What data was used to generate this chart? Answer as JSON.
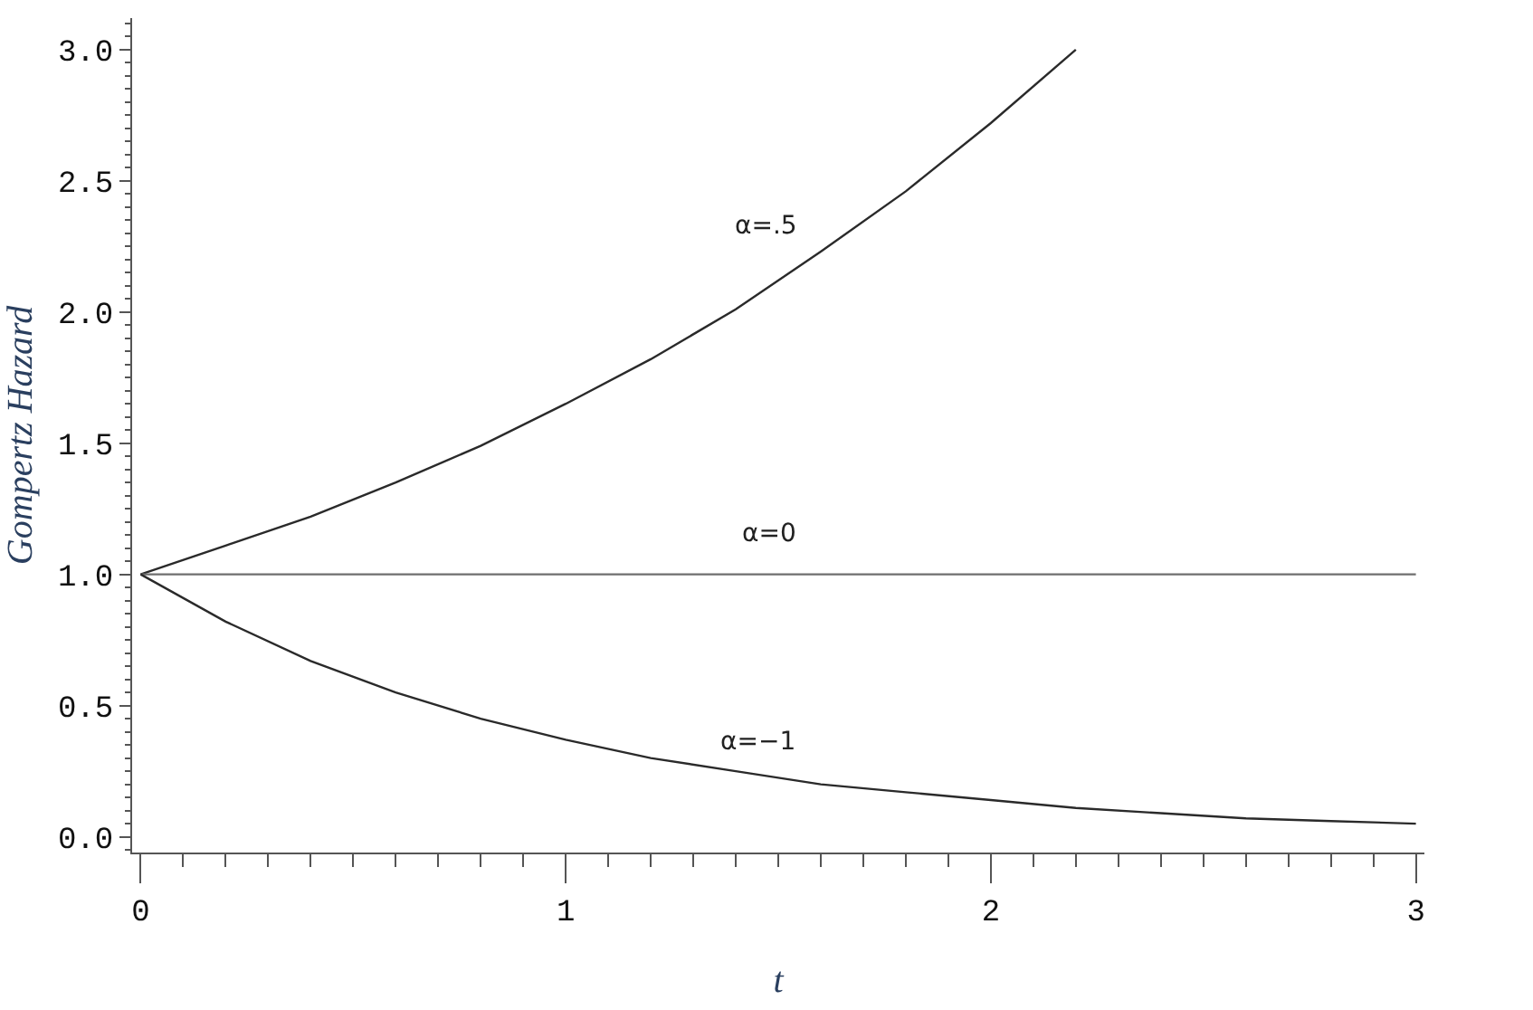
{
  "chart_data": {
    "type": "line",
    "xlabel": "t",
    "ylabel": "Gompertz Hazard",
    "xlim": [
      -0.02,
      3.02
    ],
    "ylim": [
      -0.06,
      3.12
    ],
    "xticks": [
      0,
      1,
      2,
      3
    ],
    "yticks": [
      {
        "value": 0,
        "label": "0.0"
      },
      {
        "value": 0.5,
        "label": "0.5"
      },
      {
        "value": 1,
        "label": "1.0"
      },
      {
        "value": 1.5,
        "label": "1.5"
      },
      {
        "value": 2,
        "label": "2.0"
      },
      {
        "value": 2.5,
        "label": "2.5"
      },
      {
        "value": 3,
        "label": "3.0"
      }
    ],
    "legend": false,
    "marker": "none",
    "line_style": "solid",
    "series": [
      {
        "name": "α=.5",
        "color": "#2a2a2a",
        "x": [
          0,
          0.2,
          0.4,
          0.6,
          0.8,
          1.0,
          1.2,
          1.4,
          1.6,
          1.8,
          2.0,
          2.2
        ],
        "values": [
          1.0,
          1.11,
          1.22,
          1.35,
          1.49,
          1.65,
          1.82,
          2.01,
          2.23,
          2.46,
          2.72,
          3.0
        ]
      },
      {
        "name": "α=0",
        "color": "#6e6e6e",
        "x": [
          0,
          3
        ],
        "values": [
          1.0,
          1.0
        ]
      },
      {
        "name": "α=−1",
        "color": "#2a2a2a",
        "x": [
          0,
          0.2,
          0.4,
          0.6,
          0.8,
          1.0,
          1.2,
          1.4,
          1.6,
          1.8,
          2.0,
          2.2,
          2.4,
          2.6,
          2.8,
          3.0
        ],
        "values": [
          1.0,
          0.82,
          0.67,
          0.55,
          0.45,
          0.37,
          0.3,
          0.25,
          0.2,
          0.17,
          0.14,
          0.11,
          0.09,
          0.07,
          0.06,
          0.05
        ]
      }
    ]
  }
}
